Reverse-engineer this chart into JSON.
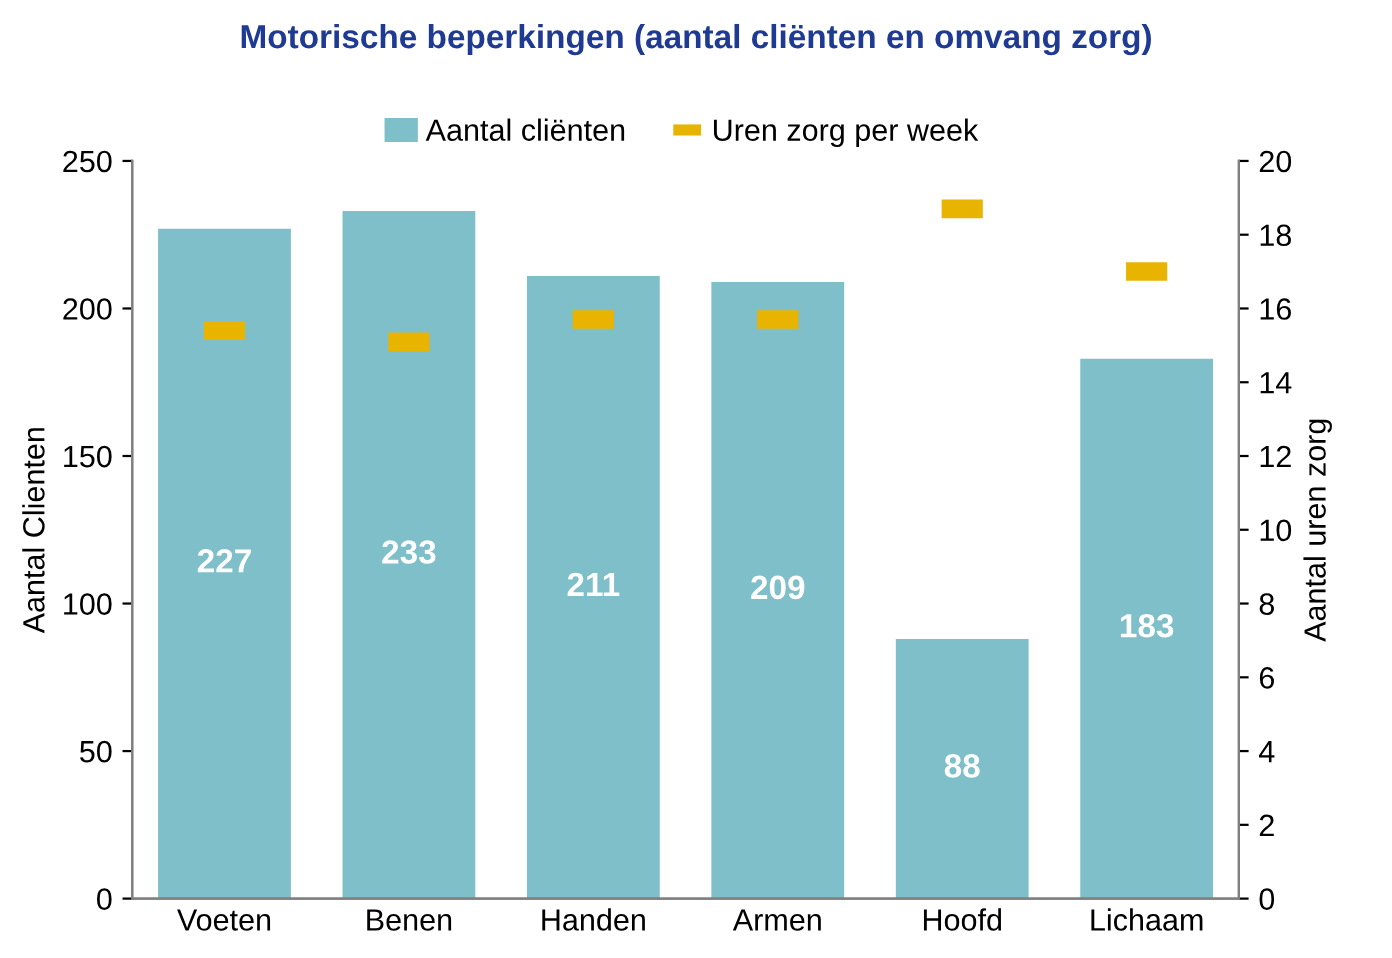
{
  "chart_data": {
    "type": "bar",
    "title": "Motorische beperkingen (aantal cliënten en omvang zorg)",
    "ylabel": "Aantal Clienten",
    "y2label": "Aantal uren zorg",
    "categories": [
      "Voeten",
      "Benen",
      "Handen",
      "Armen",
      "Hoofd",
      "Lichaam"
    ],
    "series": [
      {
        "name": "Aantal cliënten",
        "color": "#7fbfc9",
        "values": [
          227,
          233,
          211,
          209,
          88,
          183
        ],
        "value_labels": [
          "227",
          "233",
          "211",
          "209",
          "88",
          "183"
        ]
      },
      {
        "name": "Uren zorg per week",
        "type": "scatter",
        "marker": "square",
        "axis": "y2",
        "color": "#e8b400",
        "values": [
          15.4,
          15.1,
          15.7,
          15.7,
          18.7,
          17.0
        ]
      }
    ],
    "ylim": [
      0,
      250
    ],
    "yticks": [
      0,
      50,
      100,
      150,
      200,
      250
    ],
    "y2lim": [
      0,
      20
    ],
    "y2ticks": [
      0,
      2,
      4,
      6,
      8,
      10,
      12,
      14,
      16,
      18,
      20
    ],
    "legend": "top"
  }
}
